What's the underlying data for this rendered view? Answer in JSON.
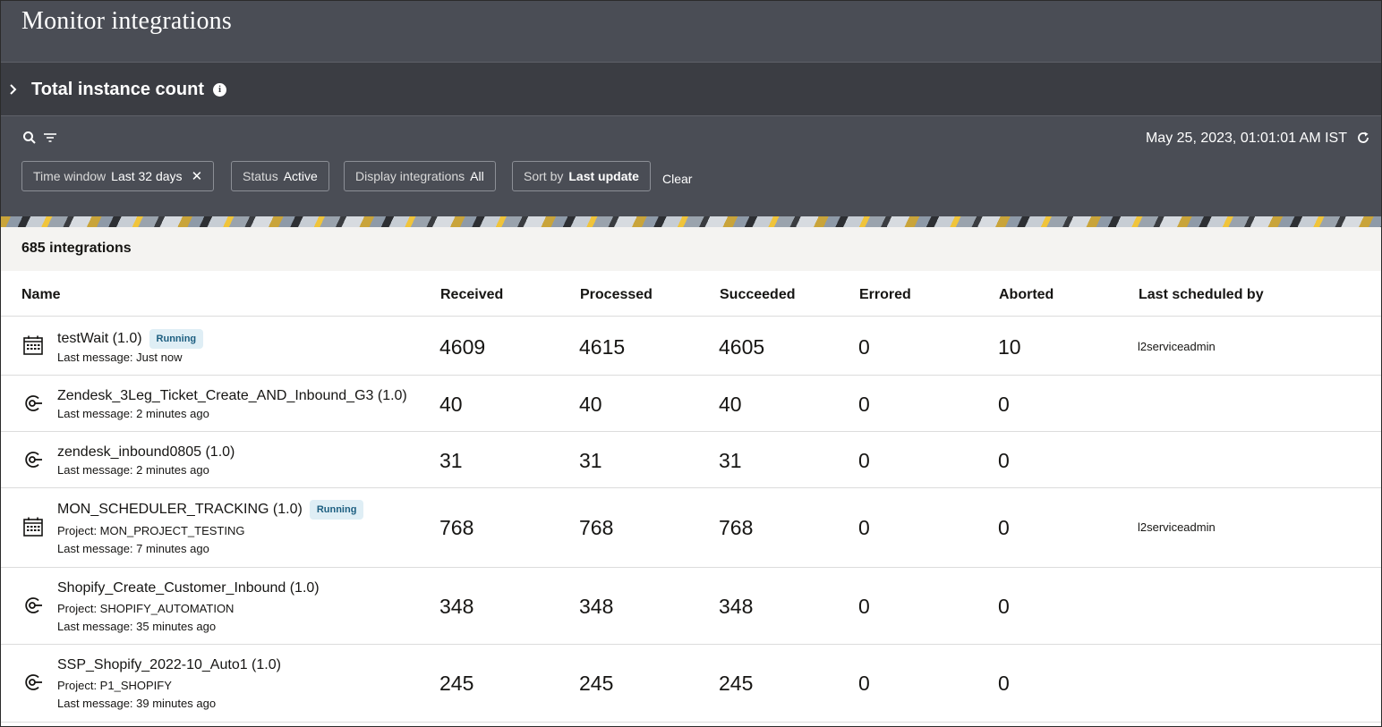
{
  "header": {
    "title": "Monitor integrations"
  },
  "instance_count": {
    "title": "Total instance count"
  },
  "filters": {
    "timestamp": "May 25, 2023, 01:01:01 AM IST",
    "chips": [
      {
        "label": "Time window",
        "value": "Last 32 days"
      },
      {
        "label": "Status",
        "value": "Active"
      },
      {
        "label": "Display integrations",
        "value": "All"
      },
      {
        "label": "Sort by",
        "value": "Last update"
      }
    ],
    "clear_label": "Clear"
  },
  "summary": {
    "count_text": "685 integrations"
  },
  "table": {
    "columns": [
      "Name",
      "Received",
      "Processed",
      "Succeeded",
      "Errored",
      "Aborted",
      "Last scheduled by"
    ],
    "rows": [
      {
        "icon": "calendar-icon",
        "name": "testWait (1.0)",
        "badge": "Running",
        "project": "",
        "last_message": "Last message: Just now",
        "received": "4609",
        "processed": "4615",
        "succeeded": "4605",
        "errored": "0",
        "aborted": "10",
        "scheduled_by": "l2serviceadmin"
      },
      {
        "icon": "app-driven-icon",
        "name": "Zendesk_3Leg_Ticket_Create_AND_Inbound_G3 (1.0)",
        "badge": "",
        "project": "",
        "last_message": "Last message: 2 minutes ago",
        "received": "40",
        "processed": "40",
        "succeeded": "40",
        "errored": "0",
        "aborted": "0",
        "scheduled_by": ""
      },
      {
        "icon": "app-driven-icon",
        "name": "zendesk_inbound0805 (1.0)",
        "badge": "",
        "project": "",
        "last_message": "Last message: 2 minutes ago",
        "received": "31",
        "processed": "31",
        "succeeded": "31",
        "errored": "0",
        "aborted": "0",
        "scheduled_by": ""
      },
      {
        "icon": "calendar-icon",
        "name": "MON_SCHEDULER_TRACKING (1.0)",
        "badge": "Running",
        "project": "Project: MON_PROJECT_TESTING",
        "last_message": "Last message: 7 minutes ago",
        "received": "768",
        "processed": "768",
        "succeeded": "768",
        "errored": "0",
        "aborted": "0",
        "scheduled_by": "l2serviceadmin"
      },
      {
        "icon": "app-driven-icon",
        "name": "Shopify_Create_Customer_Inbound (1.0)",
        "badge": "",
        "project": "Project: SHOPIFY_AUTOMATION",
        "last_message": "Last message: 35 minutes ago",
        "received": "348",
        "processed": "348",
        "succeeded": "348",
        "errored": "0",
        "aborted": "0",
        "scheduled_by": ""
      },
      {
        "icon": "app-driven-icon",
        "name": "SSP_Shopify_2022-10_Auto1 (1.0)",
        "badge": "",
        "project": "Project: P1_SHOPIFY",
        "last_message": "Last message: 39 minutes ago",
        "received": "245",
        "processed": "245",
        "succeeded": "245",
        "errored": "0",
        "aborted": "0",
        "scheduled_by": ""
      }
    ]
  }
}
